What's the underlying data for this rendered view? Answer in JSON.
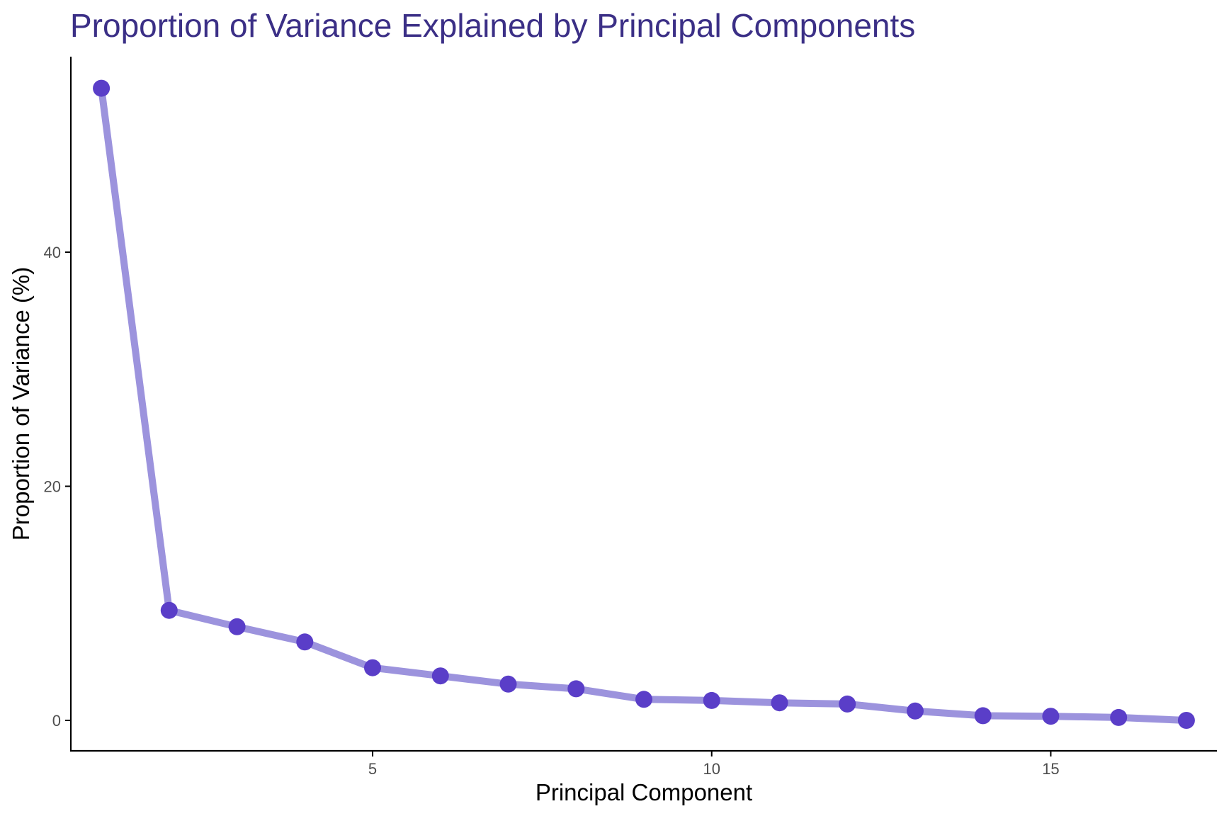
{
  "chart_data": {
    "type": "line",
    "title": "Proportion of Variance Explained by Principal Components",
    "xlabel": "Principal Component",
    "ylabel": "Proportion of Variance (%)",
    "x": [
      1,
      2,
      3,
      4,
      5,
      6,
      7,
      8,
      9,
      10,
      11,
      12,
      13,
      14,
      15,
      16,
      17
    ],
    "series": [
      {
        "values": [
          54.0,
          9.4,
          8.0,
          6.7,
          4.5,
          3.8,
          3.1,
          2.7,
          1.8,
          1.7,
          1.5,
          1.4,
          0.8,
          0.4,
          0.35,
          0.25,
          0.0
        ]
      }
    ],
    "xlim": [
      0.55,
      17.45
    ],
    "ylim": [
      -2.6,
      56.7
    ],
    "x_ticks": [
      5,
      10,
      15
    ],
    "y_ticks": [
      0,
      20,
      40
    ],
    "grid": false,
    "legend": "none",
    "colors": {
      "title": "#3b2f86",
      "line": "#9c93dd",
      "point": "#5a3ec8",
      "axis": "#000000",
      "tick_label": "#4d4d4d"
    }
  }
}
